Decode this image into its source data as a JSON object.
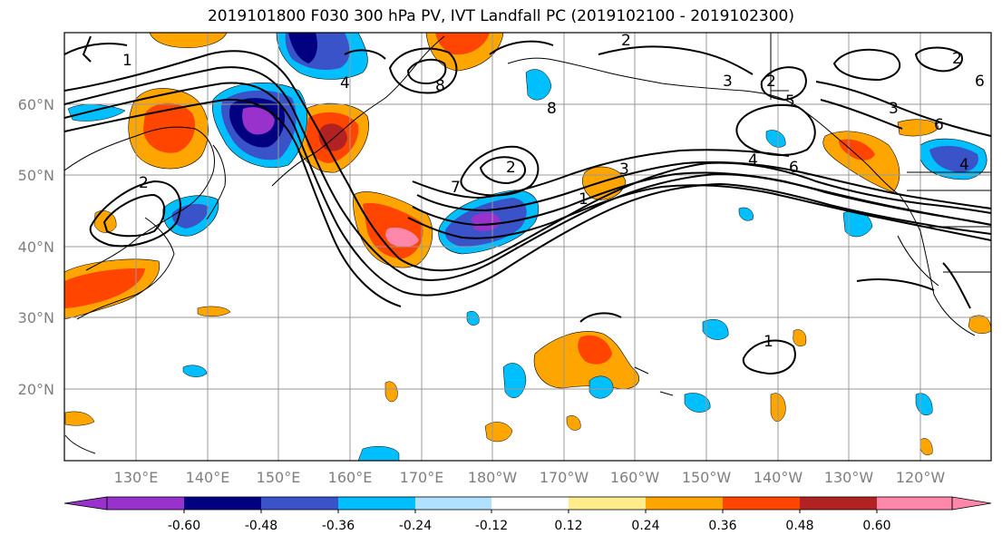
{
  "title": "2019101800 F030 300 hPa PV, IVT Landfall PC (2019102100 - 2019102300)",
  "lat_labels": [
    "60°N",
    "50°N",
    "40°N",
    "30°N",
    "20°N"
  ],
  "lon_labels": [
    "130°E",
    "140°E",
    "150°E",
    "160°E",
    "170°E",
    "180°W",
    "170°W",
    "160°W",
    "150°W",
    "140°W",
    "130°W",
    "120°W"
  ],
  "colorbar": {
    "colors": [
      "#9932cc",
      "#000080",
      "#3a53c9",
      "#00bfff",
      "#b0e2ff",
      "#ffffff",
      "#ffec8b",
      "#ffa500",
      "#ff4500",
      "#b22222",
      "#ff88aa"
    ],
    "tick_labels": [
      "-0.60",
      "-0.48",
      "-0.36",
      "-0.24",
      "-0.12",
      "0.12",
      "0.24",
      "0.36",
      "0.48",
      "0.60"
    ]
  },
  "contour_labels": [
    "1",
    "1",
    "1",
    "2",
    "2",
    "2",
    "2",
    "2",
    "3",
    "3",
    "3",
    "4",
    "4",
    "4",
    "5",
    "6",
    "6",
    "6",
    "7",
    "8",
    "8"
  ],
  "colors": {
    "positive_strong": "#ff4500",
    "positive": "#ffa500",
    "positive_weak": "#ffec8b",
    "positive_extreme": "#ff88aa",
    "negative": "#00bfff",
    "negative_strong": "#3a53c9",
    "negative_extreme": "#9932cc",
    "contour": "#000000",
    "grid": "#999999"
  }
}
